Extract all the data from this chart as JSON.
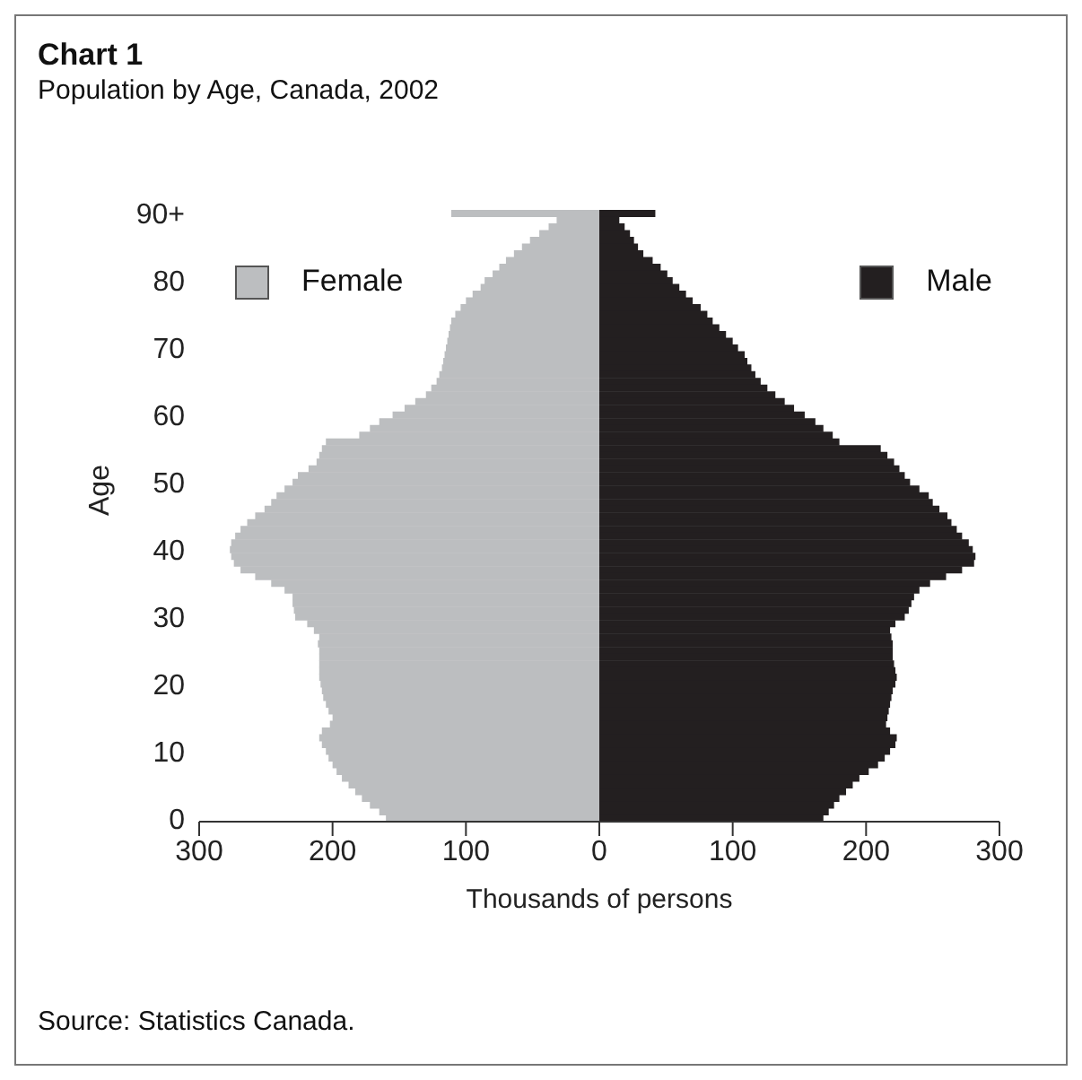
{
  "chart_data": {
    "type": "bar",
    "orientation": "horizontal",
    "stacked": true,
    "title": "Chart 1",
    "subtitle": "Population by Age, Canada, 2002",
    "xlabel": "Thousands of persons",
    "ylabel": "Age",
    "categories": [
      "90+",
      null,
      null,
      null,
      null,
      null,
      null,
      null,
      null,
      null,
      "80",
      null,
      null,
      null,
      null,
      null,
      null,
      null,
      null,
      null,
      "70",
      null,
      null,
      null,
      null,
      null,
      null,
      null,
      null,
      null,
      "60",
      null,
      null,
      null,
      null,
      null,
      null,
      null,
      null,
      null,
      "50",
      null,
      null,
      null,
      null,
      null,
      null,
      null,
      null,
      null,
      "40",
      null,
      null,
      null,
      null,
      null,
      null,
      null,
      null,
      null,
      "30",
      null,
      null,
      null,
      null,
      null,
      null,
      null,
      null,
      null,
      "20",
      null,
      null,
      null,
      null,
      null,
      null,
      null,
      null,
      null,
      "10",
      null,
      null,
      null,
      null,
      null,
      null,
      null,
      null,
      null,
      "0"
    ],
    "series": [
      {
        "name": "Female",
        "color": "#bcbec0",
        "values": [
          -111,
          -32,
          -38,
          -45,
          -52,
          -58,
          -64,
          -70,
          -75,
          -80,
          -86,
          -89,
          -95,
          -100,
          -104,
          -108,
          -111,
          -112,
          -113,
          -114,
          -115,
          -116,
          -117,
          -118,
          -120,
          -122,
          -126,
          -130,
          -138,
          -146,
          -155,
          -165,
          -172,
          -180,
          -205,
          -208,
          -210,
          -212,
          -218,
          -226,
          -230,
          -236,
          -242,
          -246,
          -251,
          -258,
          -264,
          -269,
          -273,
          -276,
          -277,
          -276,
          -274,
          -269,
          -258,
          -246,
          -236,
          -230,
          -230,
          -229,
          -228,
          -219,
          -214,
          -210,
          -211,
          -210,
          -210,
          -210,
          -210,
          -210,
          -209,
          -208,
          -207,
          -205,
          -203,
          -200,
          -202,
          -208,
          -210,
          -208,
          -205,
          -203,
          -200,
          -197,
          -193,
          -188,
          -183,
          -178,
          -172,
          -165,
          -160
        ]
      },
      {
        "name": "Male",
        "color": "#231f20",
        "values": [
          42,
          15,
          19,
          23,
          26,
          29,
          33,
          40,
          46,
          51,
          55,
          60,
          65,
          70,
          76,
          81,
          85,
          90,
          95,
          100,
          104,
          109,
          111,
          114,
          117,
          121,
          126,
          132,
          139,
          146,
          154,
          162,
          168,
          175,
          180,
          211,
          216,
          221,
          225,
          229,
          233,
          240,
          247,
          250,
          255,
          261,
          264,
          268,
          272,
          277,
          280,
          282,
          281,
          272,
          260,
          248,
          240,
          236,
          234,
          232,
          229,
          222,
          218,
          219,
          220,
          220,
          220,
          221,
          222,
          223,
          222,
          220,
          219,
          218,
          217,
          216,
          215,
          218,
          223,
          222,
          218,
          214,
          209,
          202,
          195,
          190,
          185,
          180,
          176,
          172,
          168
        ]
      }
    ],
    "xlim": [
      -300,
      300
    ],
    "xticks": [
      {
        "value": -300,
        "label": "300"
      },
      {
        "value": -200,
        "label": "200"
      },
      {
        "value": -100,
        "label": "100"
      },
      0,
      100,
      200,
      300
    ],
    "legend": "top",
    "annotations": [
      "Source: Statistics Canada."
    ]
  }
}
